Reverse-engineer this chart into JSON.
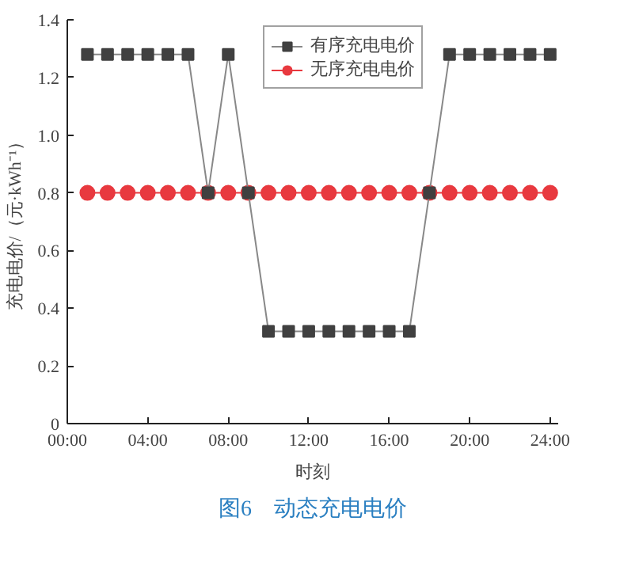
{
  "chart_data": {
    "type": "line",
    "title": "图6　动态充电电价",
    "xlabel": "时刻",
    "ylabel": "充电电价/（元·kWh⁻¹）",
    "x": [
      1,
      2,
      3,
      4,
      5,
      6,
      7,
      8,
      9,
      10,
      11,
      12,
      13,
      14,
      15,
      16,
      17,
      18,
      19,
      20,
      21,
      22,
      23,
      24
    ],
    "series": [
      {
        "name": "有序充电电价",
        "color": "#404040",
        "marker": "square",
        "values": [
          1.28,
          1.28,
          1.28,
          1.28,
          1.28,
          1.28,
          0.8,
          1.28,
          0.8,
          0.32,
          0.32,
          0.32,
          0.32,
          0.32,
          0.32,
          0.32,
          0.32,
          0.8,
          1.28,
          1.28,
          1.28,
          1.28,
          1.28,
          1.28
        ]
      },
      {
        "name": "无序充电电价",
        "color": "#e8393f",
        "marker": "circle",
        "values": [
          0.8,
          0.8,
          0.8,
          0.8,
          0.8,
          0.8,
          0.8,
          0.8,
          0.8,
          0.8,
          0.8,
          0.8,
          0.8,
          0.8,
          0.8,
          0.8,
          0.8,
          0.8,
          0.8,
          0.8,
          0.8,
          0.8,
          0.8,
          0.8
        ]
      }
    ],
    "xlim": [
      0,
      24.4
    ],
    "xticks": [
      {
        "value": 0,
        "label": "00:00"
      },
      {
        "value": 4,
        "label": "04:00"
      },
      {
        "value": 8,
        "label": "08:00"
      },
      {
        "value": 12,
        "label": "12:00"
      },
      {
        "value": 16,
        "label": "16:00"
      },
      {
        "value": 20,
        "label": "20:00"
      },
      {
        "value": 24,
        "label": "24:00"
      }
    ],
    "ylim": [
      0,
      1.4
    ],
    "yticks": [
      0,
      0.2,
      0.4,
      0.6,
      0.8,
      {
        "value": 1,
        "label": "1.0"
      },
      1.2,
      1.4
    ],
    "grid": false,
    "legend": "top right"
  }
}
